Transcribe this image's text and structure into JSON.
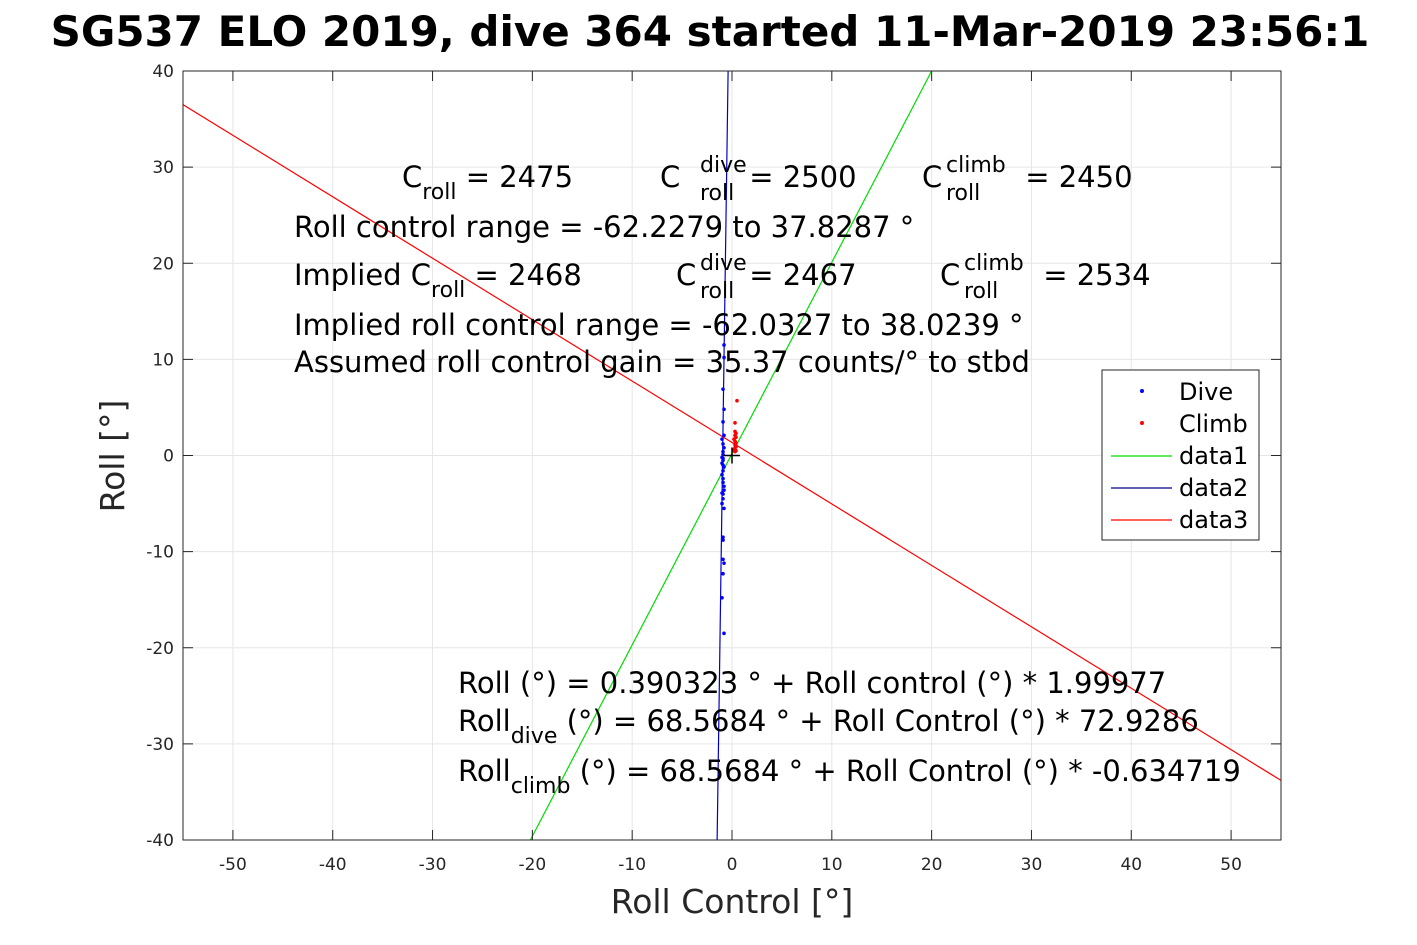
{
  "chart_data": {
    "type": "scatter",
    "title": "SG537 ELO 2019, dive 364 started 11-Mar-2019 23:56:1",
    "xlabel": "Roll Control [°]",
    "ylabel": "Roll [°]",
    "xlim": [
      -55,
      55
    ],
    "ylim": [
      -40,
      40
    ],
    "xticks": [
      -50,
      -40,
      -30,
      -20,
      -10,
      0,
      10,
      20,
      30,
      40,
      50
    ],
    "yticks": [
      -40,
      -30,
      -20,
      -10,
      0,
      10,
      20,
      30,
      40
    ],
    "grid": true,
    "legend_position": "right",
    "legend": [
      {
        "label": "Dive",
        "kind": "marker",
        "color": "#0000ff"
      },
      {
        "label": "Climb",
        "kind": "marker",
        "color": "#ff0000"
      },
      {
        "label": "data1",
        "kind": "line",
        "color": "#00dd00"
      },
      {
        "label": "data2",
        "kind": "line",
        "color": "#00008b"
      },
      {
        "label": "data3",
        "kind": "line",
        "color": "#ff0000"
      }
    ],
    "series": [
      {
        "name": "Dive",
        "kind": "scatter",
        "color": "#0000ff",
        "x": [
          -0.8,
          -0.8,
          -0.9,
          -0.8,
          -0.9,
          -0.8,
          -1.0,
          -0.9,
          -0.8,
          -0.9,
          -0.9,
          -1.0,
          -0.9,
          -1.0,
          -0.8,
          -0.9,
          -1.0,
          -0.9,
          -0.9,
          -0.8,
          -0.8,
          -0.9,
          -0.9,
          -1.0,
          -0.8,
          -0.9,
          -0.9,
          -0.9,
          -0.8,
          -0.9,
          -1.0,
          -0.8,
          -0.9,
          -0.9,
          -1.0
        ],
        "y": [
          11.5,
          10.2,
          6.9,
          4.8,
          3.5,
          2.1,
          1.7,
          1.2,
          0.8,
          0.4,
          0.1,
          -0.2,
          -0.5,
          -0.8,
          -1.2,
          -1.6,
          -2.0,
          -2.4,
          -2.8,
          -3.2,
          -3.6,
          -4.0,
          -4.5,
          -5.0,
          -5.5,
          -8.5,
          -8.8,
          -10.8,
          -11.2,
          -12.3,
          -14.8,
          -18.5,
          -0.3,
          -1.0,
          -3.9
        ]
      },
      {
        "name": "Climb",
        "kind": "scatter",
        "color": "#ff0000",
        "x": [
          0.5,
          0.3,
          0.3,
          0.4,
          0.3,
          0.4,
          0.2,
          0.3,
          0.4,
          0.3,
          0.4,
          0.3,
          0.2,
          0.4,
          0.3,
          0.4
        ],
        "y": [
          5.7,
          3.4,
          2.5,
          2.3,
          2.1,
          1.9,
          1.7,
          1.5,
          1.3,
          1.1,
          0.9,
          0.8,
          0.6,
          0.5,
          0.4,
          1.0
        ]
      },
      {
        "name": "data1",
        "kind": "line",
        "color": "#00dd00",
        "x": [
          -20.2,
          20
        ],
        "y": [
          -40,
          40
        ]
      },
      {
        "name": "data2",
        "kind": "line",
        "color": "#0000cc",
        "x": [
          -1.49,
          -0.39
        ],
        "y": [
          -40,
          40
        ]
      },
      {
        "name": "data3",
        "kind": "line",
        "color": "#ff0000",
        "x": [
          -55,
          55
        ],
        "y": [
          36.5,
          -33.8
        ]
      }
    ],
    "centroid": {
      "x": 0,
      "y": 0,
      "color": "#000000"
    },
    "annotations": {
      "c_roll": {
        "main": "C",
        "sub": "roll",
        "rest": " = 2475"
      },
      "c_roll_dive": {
        "main": "C",
        "sup": "dive",
        "sub": "roll",
        "rest": " = 2500"
      },
      "c_roll_climb": {
        "main": "C",
        "sup": "climb",
        "sub": "roll",
        "rest": " = 2450"
      },
      "range": "Roll control range = -62.2279 to 37.8287 °",
      "implied_c_roll": {
        "main": "Implied C",
        "sub": "roll",
        "rest": " = 2468"
      },
      "implied_c_dive": {
        "main": "C",
        "sup": "dive",
        "sub": "roll",
        "rest": " = 2467"
      },
      "implied_c_climb": {
        "main": "C",
        "sup": "climb",
        "sub": "roll",
        "rest": " = 2534"
      },
      "implied_range": "Implied roll control range = -62.0327 to 38.0239 °",
      "gain": "Assumed roll control gain = 35.37 counts/° to stbd",
      "fit": "Roll (°) = 0.390323 ° + Roll control (°) * 1.99977",
      "fit_dive": {
        "main": "Roll",
        "sub": "dive",
        "rest": " (°) = 68.5684 ° + Roll Control (°) * 72.9286"
      },
      "fit_climb": {
        "main": "Roll",
        "sub": "climb",
        "rest": " (°) = 68.5684 ° + Roll Control (°) * -0.634719"
      }
    }
  }
}
